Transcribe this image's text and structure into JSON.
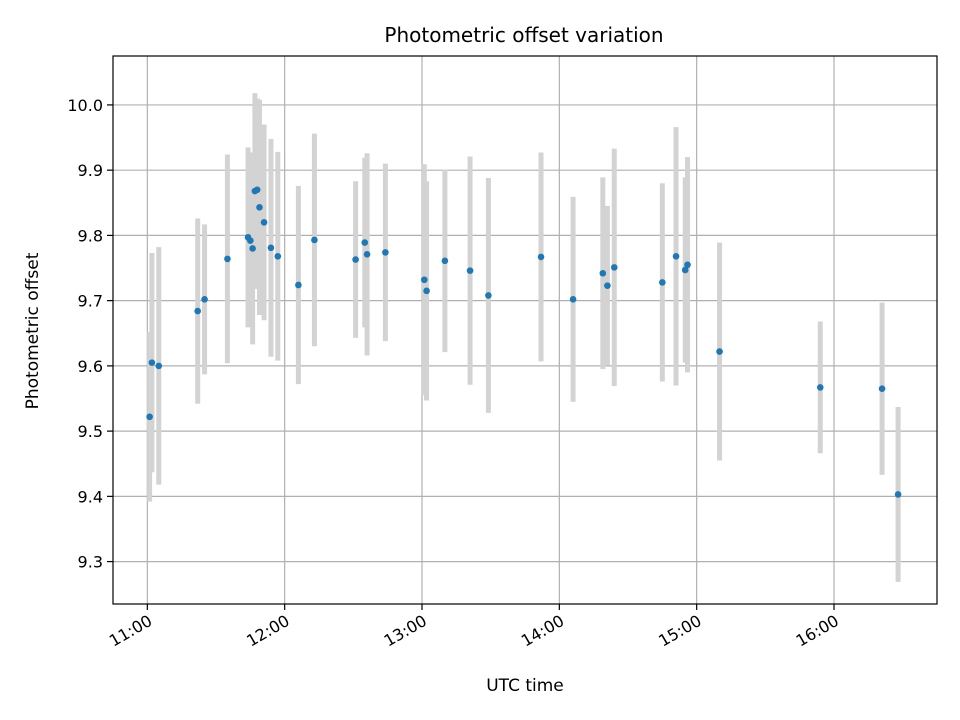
{
  "chart_data": {
    "type": "scatter",
    "title": "Photometric offset variation",
    "xlabel": "UTC time",
    "ylabel": "Photometric offset",
    "grid": true,
    "legend": "none",
    "x_range": [
      "10:45",
      "16:45"
    ],
    "ylim": [
      9.235,
      10.075
    ],
    "x_ticks": [
      "11:00",
      "12:00",
      "13:00",
      "14:00",
      "15:00",
      "16:00"
    ],
    "y_ticks": [
      "9.3",
      "9.4",
      "9.5",
      "9.6",
      "9.7",
      "9.8",
      "9.9",
      "10.0"
    ],
    "colors": {
      "marker": "#1f77b4",
      "errorbar": "#d3d3d3",
      "grid": "#b0b0b0"
    },
    "series": [
      {
        "points": [
          {
            "x": "11:01",
            "y": 9.522,
            "yerr": 0.13
          },
          {
            "x": "11:02",
            "y": 9.605,
            "yerr": 0.168
          },
          {
            "x": "11:05",
            "y": 9.6,
            "yerr": 0.182
          },
          {
            "x": "11:22",
            "y": 9.684,
            "yerr": 0.142
          },
          {
            "x": "11:25",
            "y": 9.702,
            "yerr": 0.115
          },
          {
            "x": "11:35",
            "y": 9.764,
            "yerr": 0.16
          },
          {
            "x": "11:44",
            "y": 9.797,
            "yerr": 0.138
          },
          {
            "x": "11:45",
            "y": 9.792,
            "yerr": 0.132
          },
          {
            "x": "11:46",
            "y": 9.78,
            "yerr": 0.147
          },
          {
            "x": "11:47",
            "y": 9.868,
            "yerr": 0.15
          },
          {
            "x": "11:48",
            "y": 9.87,
            "yerr": 0.14
          },
          {
            "x": "11:49",
            "y": 9.843,
            "yerr": 0.165
          },
          {
            "x": "11:51",
            "y": 9.82,
            "yerr": 0.15
          },
          {
            "x": "11:54",
            "y": 9.781,
            "yerr": 0.167
          },
          {
            "x": "11:57",
            "y": 9.768,
            "yerr": 0.16
          },
          {
            "x": "12:06",
            "y": 9.724,
            "yerr": 0.152
          },
          {
            "x": "12:13",
            "y": 9.793,
            "yerr": 0.163
          },
          {
            "x": "12:31",
            "y": 9.763,
            "yerr": 0.12
          },
          {
            "x": "12:35",
            "y": 9.789,
            "yerr": 0.13
          },
          {
            "x": "12:36",
            "y": 9.771,
            "yerr": 0.155
          },
          {
            "x": "12:44",
            "y": 9.774,
            "yerr": 0.136
          },
          {
            "x": "13:01",
            "y": 9.732,
            "yerr": 0.177
          },
          {
            "x": "13:02",
            "y": 9.715,
            "yerr": 0.168
          },
          {
            "x": "13:10",
            "y": 9.761,
            "yerr": 0.14
          },
          {
            "x": "13:21",
            "y": 9.746,
            "yerr": 0.175
          },
          {
            "x": "13:29",
            "y": 9.708,
            "yerr": 0.18
          },
          {
            "x": "13:52",
            "y": 9.767,
            "yerr": 0.16
          },
          {
            "x": "14:06",
            "y": 9.702,
            "yerr": 0.157
          },
          {
            "x": "14:19",
            "y": 9.742,
            "yerr": 0.147
          },
          {
            "x": "14:21",
            "y": 9.723,
            "yerr": 0.122
          },
          {
            "x": "14:24",
            "y": 9.751,
            "yerr": 0.182
          },
          {
            "x": "14:45",
            "y": 9.728,
            "yerr": 0.152
          },
          {
            "x": "14:51",
            "y": 9.768,
            "yerr": 0.198
          },
          {
            "x": "14:55",
            "y": 9.747,
            "yerr": 0.142
          },
          {
            "x": "14:56",
            "y": 9.755,
            "yerr": 0.165
          },
          {
            "x": "15:10",
            "y": 9.622,
            "yerr": 0.167
          },
          {
            "x": "15:54",
            "y": 9.567,
            "yerr": 0.101
          },
          {
            "x": "16:21",
            "y": 9.565,
            "yerr": 0.132
          },
          {
            "x": "16:28",
            "y": 9.403,
            "yerr": 0.134
          }
        ]
      }
    ]
  }
}
